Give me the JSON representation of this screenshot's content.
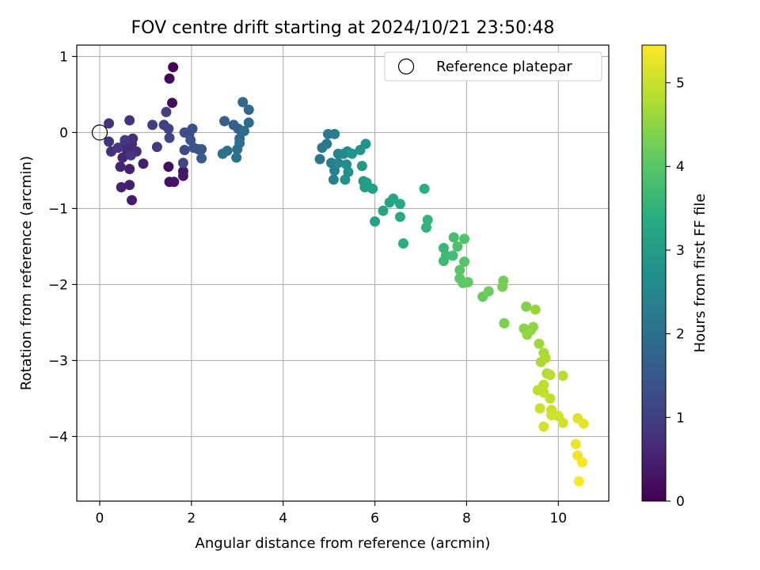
{
  "chart_data": {
    "type": "scatter",
    "title": "FOV centre drift starting at 2024/10/21 23:50:48",
    "xlabel": "Angular distance from reference (arcmin)",
    "ylabel": "Rotation from reference (arcmin)",
    "xlim": [
      -0.5,
      11.1
    ],
    "ylim": [
      -4.85,
      1.15
    ],
    "xticks": [
      0,
      2,
      4,
      6,
      8,
      10
    ],
    "yticks": [
      1,
      0,
      -1,
      -2,
      -3,
      -4
    ],
    "grid": true,
    "legend": {
      "position": "upper-right",
      "entries": [
        "Reference platepar"
      ]
    },
    "reference_point": {
      "x": 0,
      "y": 0
    },
    "colorbar": {
      "label": "Hours from first FF file",
      "range": [
        0,
        5.45
      ],
      "ticks": [
        0,
        1,
        2,
        3,
        4,
        5
      ],
      "colormap": "viridis"
    },
    "points": [
      {
        "x": 1.6,
        "y": 0.86,
        "c": 0.05
      },
      {
        "x": 1.52,
        "y": 0.71,
        "c": 0.1
      },
      {
        "x": 1.58,
        "y": 0.39,
        "c": 0.15
      },
      {
        "x": 1.5,
        "y": -0.45,
        "c": 0.2
      },
      {
        "x": 1.52,
        "y": -0.65,
        "c": 0.25
      },
      {
        "x": 1.62,
        "y": -0.65,
        "c": 0.3
      },
      {
        "x": 1.82,
        "y": -0.51,
        "c": 0.3
      },
      {
        "x": 1.82,
        "y": -0.57,
        "c": 0.35
      },
      {
        "x": 0.7,
        "y": -0.89,
        "c": 0.4
      },
      {
        "x": 0.95,
        "y": -0.41,
        "c": 0.45
      },
      {
        "x": 0.65,
        "y": -0.69,
        "c": 0.45
      },
      {
        "x": 0.47,
        "y": -0.72,
        "c": 0.5
      },
      {
        "x": 0.65,
        "y": -0.48,
        "c": 0.5
      },
      {
        "x": 0.45,
        "y": -0.45,
        "c": 0.55
      },
      {
        "x": 0.5,
        "y": -0.33,
        "c": 0.55
      },
      {
        "x": 0.6,
        "y": -0.25,
        "c": 0.6
      },
      {
        "x": 0.7,
        "y": -0.15,
        "c": 0.6
      },
      {
        "x": 0.55,
        "y": -0.15,
        "c": 0.65
      },
      {
        "x": 0.62,
        "y": -0.18,
        "c": 0.65
      },
      {
        "x": 0.8,
        "y": -0.25,
        "c": 0.7
      },
      {
        "x": 0.72,
        "y": -0.08,
        "c": 0.7
      },
      {
        "x": 0.65,
        "y": 0.16,
        "c": 0.75
      },
      {
        "x": 0.25,
        "y": -0.25,
        "c": 0.75
      },
      {
        "x": 0.2,
        "y": -0.12,
        "c": 0.8
      },
      {
        "x": 0.2,
        "y": 0.12,
        "c": 0.8
      },
      {
        "x": 0.4,
        "y": -0.2,
        "c": 0.85
      },
      {
        "x": 0.68,
        "y": -0.3,
        "c": 0.85
      },
      {
        "x": 0.55,
        "y": -0.1,
        "c": 0.9
      },
      {
        "x": 1.25,
        "y": -0.19,
        "c": 0.95
      },
      {
        "x": 1.4,
        "y": 0.1,
        "c": 1.0
      },
      {
        "x": 1.15,
        "y": 0.1,
        "c": 1.0
      },
      {
        "x": 1.45,
        "y": 0.27,
        "c": 1.05
      },
      {
        "x": 1.5,
        "y": 0.05,
        "c": 1.1
      },
      {
        "x": 1.52,
        "y": -0.07,
        "c": 1.1
      },
      {
        "x": 1.82,
        "y": -0.4,
        "c": 1.15
      },
      {
        "x": 1.85,
        "y": -0.23,
        "c": 1.2
      },
      {
        "x": 1.95,
        "y": -0.02,
        "c": 1.3
      },
      {
        "x": 1.85,
        "y": 0.0,
        "c": 1.3
      },
      {
        "x": 2.02,
        "y": 0.05,
        "c": 1.35
      },
      {
        "x": 1.98,
        "y": -0.1,
        "c": 1.4
      },
      {
        "x": 2.05,
        "y": -0.2,
        "c": 1.45
      },
      {
        "x": 2.15,
        "y": -0.22,
        "c": 1.5
      },
      {
        "x": 2.22,
        "y": -0.22,
        "c": 1.5
      },
      {
        "x": 2.22,
        "y": -0.34,
        "c": 1.55
      },
      {
        "x": 2.72,
        "y": 0.15,
        "c": 1.6
      },
      {
        "x": 2.92,
        "y": 0.1,
        "c": 1.65
      },
      {
        "x": 3.02,
        "y": 0.05,
        "c": 1.7
      },
      {
        "x": 3.05,
        "y": -0.08,
        "c": 1.75
      },
      {
        "x": 3.12,
        "y": 0.4,
        "c": 1.8
      },
      {
        "x": 3.25,
        "y": 0.3,
        "c": 1.85
      },
      {
        "x": 3.25,
        "y": 0.13,
        "c": 1.9
      },
      {
        "x": 3.15,
        "y": 0.02,
        "c": 1.9
      },
      {
        "x": 3.0,
        "y": -0.22,
        "c": 1.95
      },
      {
        "x": 2.98,
        "y": -0.33,
        "c": 2.0
      },
      {
        "x": 2.78,
        "y": -0.24,
        "c": 2.0
      },
      {
        "x": 2.68,
        "y": -0.28,
        "c": 2.05
      },
      {
        "x": 3.05,
        "y": -0.14,
        "c": 2.05
      },
      {
        "x": 4.8,
        "y": -0.35,
        "c": 2.1
      },
      {
        "x": 4.85,
        "y": -0.2,
        "c": 2.15
      },
      {
        "x": 4.95,
        "y": -0.15,
        "c": 2.2
      },
      {
        "x": 4.98,
        "y": -0.02,
        "c": 2.2
      },
      {
        "x": 5.12,
        "y": -0.02,
        "c": 2.25
      },
      {
        "x": 5.05,
        "y": -0.4,
        "c": 2.3
      },
      {
        "x": 5.12,
        "y": -0.5,
        "c": 2.35
      },
      {
        "x": 5.1,
        "y": -0.62,
        "c": 2.4
      },
      {
        "x": 5.2,
        "y": -0.28,
        "c": 2.45
      },
      {
        "x": 5.2,
        "y": -0.4,
        "c": 2.5
      },
      {
        "x": 5.32,
        "y": -0.28,
        "c": 2.55
      },
      {
        "x": 5.4,
        "y": -0.25,
        "c": 2.6
      },
      {
        "x": 5.38,
        "y": -0.42,
        "c": 2.65
      },
      {
        "x": 5.42,
        "y": -0.52,
        "c": 2.7
      },
      {
        "x": 5.35,
        "y": -0.62,
        "c": 2.7
      },
      {
        "x": 5.5,
        "y": -0.28,
        "c": 2.75
      },
      {
        "x": 5.68,
        "y": -0.23,
        "c": 2.8
      },
      {
        "x": 5.8,
        "y": -0.15,
        "c": 2.85
      },
      {
        "x": 5.72,
        "y": -0.44,
        "c": 2.9
      },
      {
        "x": 5.75,
        "y": -0.64,
        "c": 2.95
      },
      {
        "x": 5.82,
        "y": -0.66,
        "c": 3.0
      },
      {
        "x": 5.78,
        "y": -0.72,
        "c": 3.0
      },
      {
        "x": 5.95,
        "y": -0.74,
        "c": 3.05
      },
      {
        "x": 6.0,
        "y": -1.17,
        "c": 3.1
      },
      {
        "x": 6.18,
        "y": -1.03,
        "c": 3.15
      },
      {
        "x": 6.32,
        "y": -0.92,
        "c": 3.2
      },
      {
        "x": 6.4,
        "y": -0.87,
        "c": 3.25
      },
      {
        "x": 6.55,
        "y": -0.94,
        "c": 3.3
      },
      {
        "x": 6.55,
        "y": -1.11,
        "c": 3.35
      },
      {
        "x": 6.62,
        "y": -1.46,
        "c": 3.4
      },
      {
        "x": 7.08,
        "y": -0.74,
        "c": 3.45
      },
      {
        "x": 7.12,
        "y": -1.25,
        "c": 3.5
      },
      {
        "x": 7.15,
        "y": -1.15,
        "c": 3.55
      },
      {
        "x": 7.5,
        "y": -1.52,
        "c": 3.6
      },
      {
        "x": 7.55,
        "y": -1.62,
        "c": 3.65
      },
      {
        "x": 7.5,
        "y": -1.69,
        "c": 3.7
      },
      {
        "x": 7.7,
        "y": -1.62,
        "c": 3.75
      },
      {
        "x": 7.72,
        "y": -1.38,
        "c": 3.8
      },
      {
        "x": 7.8,
        "y": -1.5,
        "c": 3.85
      },
      {
        "x": 7.95,
        "y": -1.4,
        "c": 3.9
      },
      {
        "x": 7.95,
        "y": -1.7,
        "c": 3.95
      },
      {
        "x": 7.85,
        "y": -1.81,
        "c": 4.0
      },
      {
        "x": 7.85,
        "y": -1.92,
        "c": 4.0
      },
      {
        "x": 7.92,
        "y": -1.98,
        "c": 4.05
      },
      {
        "x": 8.03,
        "y": -1.97,
        "c": 4.1
      },
      {
        "x": 8.35,
        "y": -2.16,
        "c": 4.15
      },
      {
        "x": 8.48,
        "y": -2.09,
        "c": 4.2
      },
      {
        "x": 8.8,
        "y": -1.95,
        "c": 4.25
      },
      {
        "x": 8.78,
        "y": -2.03,
        "c": 4.3
      },
      {
        "x": 8.82,
        "y": -2.51,
        "c": 4.35
      },
      {
        "x": 9.3,
        "y": -2.29,
        "c": 4.4
      },
      {
        "x": 9.25,
        "y": -2.58,
        "c": 4.45
      },
      {
        "x": 9.4,
        "y": -2.6,
        "c": 4.5
      },
      {
        "x": 9.45,
        "y": -2.56,
        "c": 4.5
      },
      {
        "x": 9.32,
        "y": -2.66,
        "c": 4.55
      },
      {
        "x": 9.5,
        "y": -2.33,
        "c": 4.6
      },
      {
        "x": 9.58,
        "y": -2.78,
        "c": 4.65
      },
      {
        "x": 9.68,
        "y": -2.9,
        "c": 4.7
      },
      {
        "x": 9.72,
        "y": -2.97,
        "c": 4.75
      },
      {
        "x": 9.62,
        "y": -3.02,
        "c": 4.75
      },
      {
        "x": 9.75,
        "y": -3.17,
        "c": 4.8
      },
      {
        "x": 9.82,
        "y": -3.19,
        "c": 4.85
      },
      {
        "x": 10.1,
        "y": -3.2,
        "c": 4.85
      },
      {
        "x": 9.68,
        "y": -3.32,
        "c": 4.9
      },
      {
        "x": 9.55,
        "y": -3.39,
        "c": 4.9
      },
      {
        "x": 9.68,
        "y": -3.42,
        "c": 4.95
      },
      {
        "x": 9.82,
        "y": -3.5,
        "c": 4.95
      },
      {
        "x": 9.6,
        "y": -3.63,
        "c": 5.0
      },
      {
        "x": 9.85,
        "y": -3.65,
        "c": 5.0
      },
      {
        "x": 9.85,
        "y": -3.72,
        "c": 5.05
      },
      {
        "x": 10.0,
        "y": -3.73,
        "c": 5.05
      },
      {
        "x": 10.1,
        "y": -3.82,
        "c": 5.1
      },
      {
        "x": 9.68,
        "y": -3.87,
        "c": 5.1
      },
      {
        "x": 10.42,
        "y": -3.76,
        "c": 5.2
      },
      {
        "x": 10.55,
        "y": -3.83,
        "c": 5.25
      },
      {
        "x": 10.38,
        "y": -4.1,
        "c": 5.3
      },
      {
        "x": 10.42,
        "y": -4.25,
        "c": 5.35
      },
      {
        "x": 10.52,
        "y": -4.34,
        "c": 5.4
      },
      {
        "x": 10.45,
        "y": -4.59,
        "c": 5.45
      }
    ]
  }
}
